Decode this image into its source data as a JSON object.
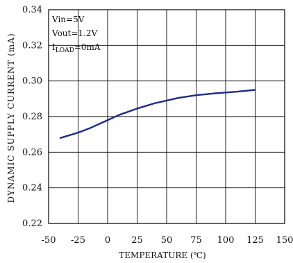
{
  "chart_data": {
    "type": "line",
    "xlabel": "TEMPERATURE (℃)",
    "ylabel": "DYNAMIC SUPPLY CURRENT (mA)",
    "xlim": [
      -50,
      150
    ],
    "ylim": [
      0.22,
      0.34
    ],
    "x_ticks": [
      -50,
      -25,
      0,
      25,
      50,
      75,
      100,
      125,
      150
    ],
    "y_ticks": [
      0.22,
      0.24,
      0.26,
      0.28,
      0.3,
      0.32,
      0.34
    ],
    "x_tick_labels": [
      "-50",
      "-25",
      "0",
      "25",
      "50",
      "75",
      "100",
      "125",
      "150"
    ],
    "y_tick_labels": [
      "0.22",
      "0.24",
      "0.26",
      "0.28",
      "0.30",
      "0.32",
      "0.34"
    ],
    "grid": true,
    "annotations": {
      "line1": "Vin=5V",
      "line2": "Vout=1.2V",
      "line3_main": "I",
      "line3_sub": "LOAD",
      "line3_rest": "=0mA"
    },
    "series": [
      {
        "color": "#1a2a8c",
        "x": [
          -40,
          -25,
          -15,
          -5,
          0,
          10,
          25,
          40,
          50,
          60,
          75,
          90,
          100,
          110,
          125
        ],
        "y": [
          0.268,
          0.271,
          0.2735,
          0.2765,
          0.278,
          0.281,
          0.2845,
          0.2875,
          0.289,
          0.2905,
          0.292,
          0.293,
          0.2935,
          0.294,
          0.295
        ]
      }
    ]
  }
}
